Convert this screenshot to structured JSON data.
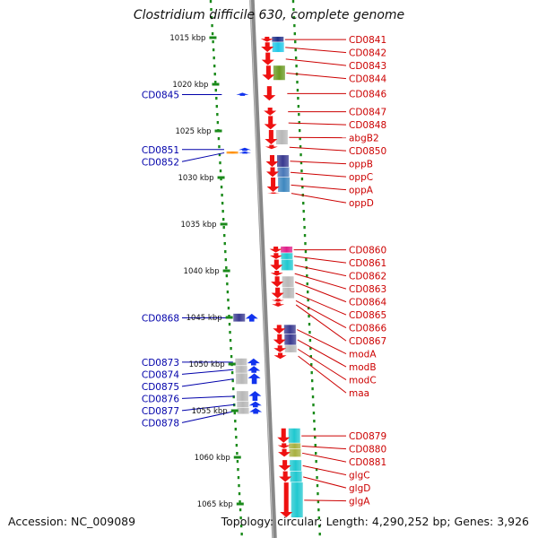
{
  "title": "Clostridium difficile 630, complete genome",
  "footer": {
    "accession": "Accession: NC_009089",
    "topology": "Topology: circular; Length: 4,290,252 bp; Genes: 3,926"
  },
  "colors": {
    "forward_gene": "#ee1111",
    "reverse_gene": "#1133ee",
    "right_label": "#cc0000",
    "left_label": "#0000aa",
    "scale_dots": "#1a8a1a",
    "axis": "#888888"
  },
  "scale": {
    "unit": "kbp",
    "ticks": [
      {
        "label": "1015 kbp",
        "kbp": 1015
      },
      {
        "label": "1020 kbp",
        "kbp": 1020
      },
      {
        "label": "1025 kbp",
        "kbp": 1025
      },
      {
        "label": "1030 kbp",
        "kbp": 1030
      },
      {
        "label": "1035 kbp",
        "kbp": 1035
      },
      {
        "label": "1040 kbp",
        "kbp": 1040
      },
      {
        "label": "1045 kbp",
        "kbp": 1045
      },
      {
        "label": "1050 kbp",
        "kbp": 1050
      },
      {
        "label": "1055 kbp",
        "kbp": 1055
      },
      {
        "label": "1060 kbp",
        "kbp": 1060
      },
      {
        "label": "1065 kbp",
        "kbp": 1065
      }
    ]
  },
  "forward_genes": [
    {
      "name": "CD0841",
      "start": 1014.9,
      "end": 1015.5,
      "box": "#1e2f88"
    },
    {
      "name": "CD0842",
      "start": 1015.5,
      "end": 1016.6,
      "box": "#20c8e8"
    },
    {
      "name": "CD0843",
      "start": 1016.6,
      "end": 1018.0,
      "box": null
    },
    {
      "name": "CD0844",
      "start": 1018.0,
      "end": 1019.6,
      "box": "#6a9a22"
    },
    {
      "name": "CD0846",
      "start": 1020.2,
      "end": 1021.8,
      "box": null
    },
    {
      "name": "CD0847",
      "start": 1022.5,
      "end": 1023.4,
      "box": null
    },
    {
      "name": "CD0848",
      "start": 1023.4,
      "end": 1024.9,
      "box": null
    },
    {
      "name": "abgB2",
      "start": 1024.9,
      "end": 1026.5,
      "box": "#b8b8b8"
    },
    {
      "name": "CD0850",
      "start": 1026.5,
      "end": 1027.0,
      "box": null
    },
    {
      "name": "oppB",
      "start": 1027.6,
      "end": 1028.9,
      "box": "#3a3a90"
    },
    {
      "name": "oppC",
      "start": 1028.9,
      "end": 1030.0,
      "box": "#4a78b8"
    },
    {
      "name": "oppA",
      "start": 1030.0,
      "end": 1031.6,
      "box": "#3f88c0"
    },
    {
      "name": "oppD",
      "start": 1031.6,
      "end": 1031.8,
      "box": null
    },
    {
      "name": "CD0860",
      "start": 1037.4,
      "end": 1038.1,
      "box": "#e0208a"
    },
    {
      "name": "CD0861",
      "start": 1038.1,
      "end": 1038.8,
      "box": "#20c8d0"
    },
    {
      "name": "CD0862",
      "start": 1038.8,
      "end": 1040.0,
      "box": "#20c8d0"
    },
    {
      "name": "CD0863",
      "start": 1040.0,
      "end": 1040.6,
      "box": null
    },
    {
      "name": "CD0864",
      "start": 1040.6,
      "end": 1041.8,
      "box": "#b8b8b8"
    },
    {
      "name": "CD0865",
      "start": 1041.8,
      "end": 1043.0,
      "box": "#b8b8b8"
    },
    {
      "name": "CD0866",
      "start": 1043.0,
      "end": 1043.4,
      "box": null
    },
    {
      "name": "CD0867",
      "start": 1043.4,
      "end": 1043.9,
      "box": null
    },
    {
      "name": "modA",
      "start": 1045.8,
      "end": 1046.8,
      "box": "#3a3a90"
    },
    {
      "name": "modB",
      "start": 1046.8,
      "end": 1048.0,
      "box": "#3a3a90"
    },
    {
      "name": "modC",
      "start": 1048.0,
      "end": 1048.8,
      "box": "#b8b8b8"
    },
    {
      "name": "maa",
      "start": 1048.8,
      "end": 1049.5,
      "box": null
    },
    {
      "name": "CD0879",
      "start": 1056.9,
      "end": 1058.5,
      "box": "#20c8d0"
    },
    {
      "name": "CD0880",
      "start": 1058.5,
      "end": 1059.1,
      "box": "#a8b040"
    },
    {
      "name": "CD0881",
      "start": 1059.1,
      "end": 1060.0,
      "box": "#a8b040"
    },
    {
      "name": "glgC",
      "start": 1060.3,
      "end": 1061.5,
      "box": "#20c8d0"
    },
    {
      "name": "glgD",
      "start": 1061.5,
      "end": 1062.7,
      "box": "#20c8d0"
    },
    {
      "name": "glgA",
      "start": 1062.7,
      "end": 1066.5,
      "box": "#20c8d0"
    }
  ],
  "reverse_genes": [
    {
      "name": "CD0845",
      "start": 1020.9,
      "end": 1021.3,
      "box": null
    },
    {
      "name": "CD0851",
      "start": 1026.8,
      "end": 1027.2,
      "box": null
    },
    {
      "name": "CD0852",
      "start": 1027.2,
      "end": 1027.5,
      "box": "#ff8c00"
    },
    {
      "name": "CD0868",
      "start": 1044.6,
      "end": 1045.5,
      "box": "#3a3a90"
    },
    {
      "name": "CD0873",
      "start": 1049.4,
      "end": 1050.2,
      "box": "#b8b8b8"
    },
    {
      "name": "CD0874",
      "start": 1050.2,
      "end": 1051.0,
      "box": "#b8b8b8"
    },
    {
      "name": "CD0875",
      "start": 1051.0,
      "end": 1052.2,
      "box": "#b8b8b8"
    },
    {
      "name": "CD0876",
      "start": 1052.9,
      "end": 1054.0,
      "box": "#b8b8b8"
    },
    {
      "name": "CD0877",
      "start": 1054.0,
      "end": 1054.7,
      "box": "#b8b8b8"
    },
    {
      "name": "CD0878",
      "start": 1054.7,
      "end": 1055.4,
      "box": "#b8b8b8"
    }
  ]
}
